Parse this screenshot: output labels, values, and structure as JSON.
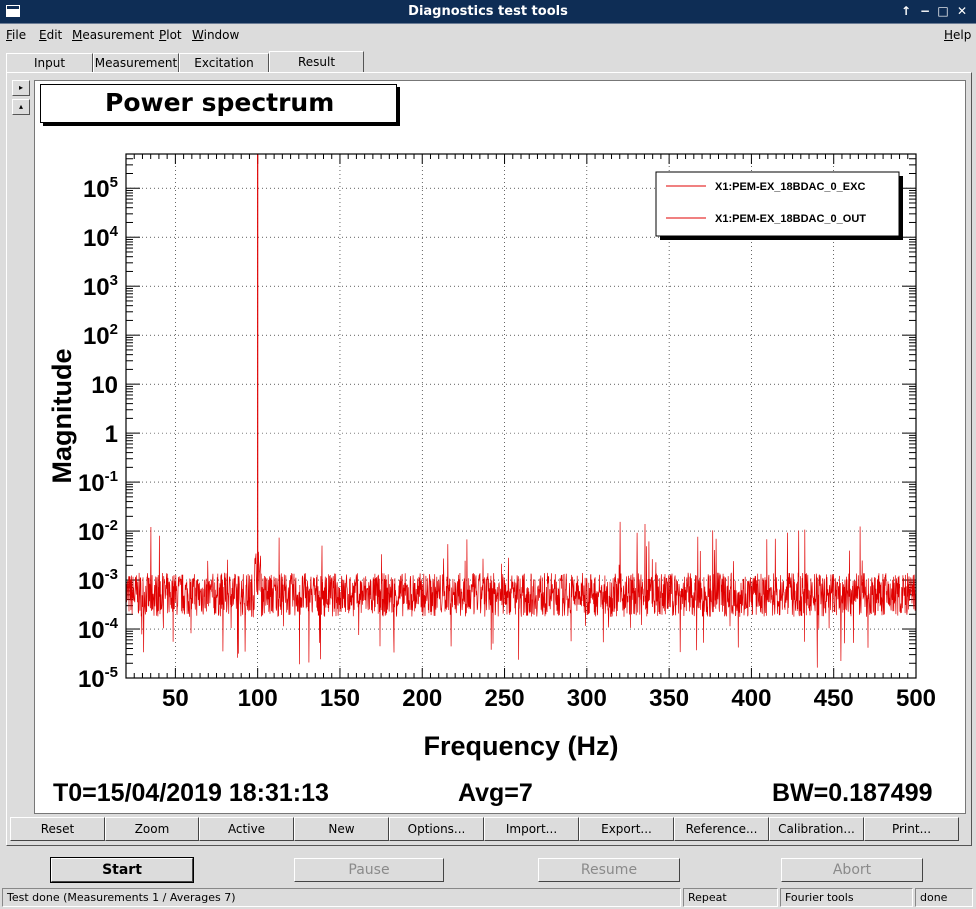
{
  "window": {
    "title": "Diagnostics test tools",
    "controls": [
      "↑",
      "−",
      "□",
      "✕"
    ]
  },
  "menu": [
    "File",
    "Edit",
    "Measurement",
    "Plot",
    "Window"
  ],
  "menu_help": "Help",
  "tabs": [
    "Input",
    "Measurement",
    "Excitation",
    "Result"
  ],
  "side_buttons": [
    "▸",
    "▴"
  ],
  "plot_title": "Power spectrum",
  "chart_data": {
    "type": "line",
    "xlabel": "Frequency (Hz)",
    "ylabel": "Magnitude",
    "xlim": [
      20,
      500
    ],
    "ylim": [
      1e-05,
      500000.0
    ],
    "yscale": "log",
    "grid": true,
    "x_ticks": [
      50,
      100,
      150,
      200,
      250,
      300,
      350,
      400,
      450,
      500
    ],
    "y_ticks": [
      {
        "base": "10",
        "exp": "-5"
      },
      {
        "base": "10",
        "exp": "-4"
      },
      {
        "base": "10",
        "exp": "-3"
      },
      {
        "base": "10",
        "exp": "-2"
      },
      {
        "base": "10",
        "exp": "-1"
      },
      {
        "base": "1",
        "exp": ""
      },
      {
        "base": "10",
        "exp": ""
      },
      {
        "base": "10",
        "exp": "2"
      },
      {
        "base": "10",
        "exp": "3"
      },
      {
        "base": "10",
        "exp": "4"
      },
      {
        "base": "10",
        "exp": "5"
      }
    ],
    "legend_position": "top-right",
    "series": [
      {
        "name": "X1:PEM-EX_18BDAC_0_EXC",
        "color": "#e00000",
        "peak": {
          "x": 100,
          "y": 500000
        },
        "noise_floor": 0.0005
      },
      {
        "name": "X1:PEM-EX_18BDAC_0_OUT",
        "color": "#e00000",
        "noise_floor": 0.0005
      }
    ]
  },
  "footer": {
    "t0": "T0=15/04/2019 18:31:13",
    "avg": "Avg=7",
    "bw": "BW=0.187499"
  },
  "toolbar": [
    "Reset",
    "Zoom",
    "Active",
    "New",
    "Options...",
    "Import...",
    "Export...",
    "Reference...",
    "Calibration...",
    "Print..."
  ],
  "controls": {
    "start": "Start",
    "pause": "Pause",
    "resume": "Resume",
    "abort": "Abort"
  },
  "status": {
    "message": "Test done (Measurements 1 / Averages 7)",
    "mode": "Repeat",
    "tool": "Fourier tools",
    "state": "done"
  }
}
